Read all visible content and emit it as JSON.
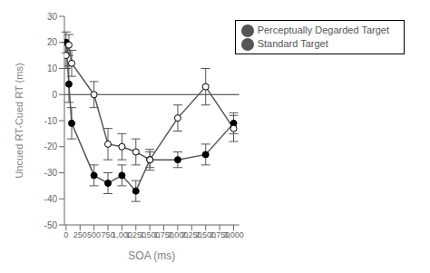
{
  "chart_data": {
    "type": "line",
    "xlabel": "SOA (ms)",
    "ylabel": "Uncued RT-Cued RT (ms)",
    "x": [
      0,
      50,
      100,
      500,
      750,
      1000,
      1250,
      1500,
      2000,
      2500,
      3000
    ],
    "series": [
      {
        "name": "Standard Target",
        "color": "#555555",
        "marker": "filled_circle",
        "values": [
          20,
          4,
          -11,
          -31,
          -34,
          -31,
          -37,
          -25,
          -25,
          -23,
          -11
        ],
        "errors": [
          4,
          7,
          6,
          4,
          4,
          4,
          4,
          3,
          3,
          4,
          4
        ]
      },
      {
        "name": "Perceptually Degarded Target",
        "color": "#555555",
        "marker": "open_circle",
        "values": [
          15,
          19,
          12,
          0,
          -19,
          -20,
          -22,
          -25,
          -9,
          3,
          -13
        ],
        "errors": [
          5,
          4,
          5,
          5,
          6,
          5,
          5,
          4,
          5,
          7,
          5
        ]
      }
    ],
    "xlim": [
      -30,
      3100
    ],
    "ylim": [
      -50,
      30
    ],
    "xticks": [
      0,
      250,
      500,
      750,
      {
        "value": 1000,
        "label": "1,000"
      },
      {
        "value": 1250,
        "label": "1,250"
      },
      {
        "value": 1500,
        "label": "1,500"
      },
      {
        "value": 1750,
        "label": "1,750"
      },
      {
        "value": 2000,
        "label": "2,000"
      },
      {
        "value": 2250,
        "label": "2,250"
      },
      {
        "value": 2500,
        "label": "2,500"
      },
      {
        "value": 2750,
        "label": "2,750"
      },
      {
        "value": 3000,
        "label": "3,000"
      }
    ],
    "yticks": [
      -50,
      -40,
      -30,
      -20,
      -10,
      0,
      10,
      20,
      30
    ],
    "grid": false,
    "legend": "upper right"
  }
}
